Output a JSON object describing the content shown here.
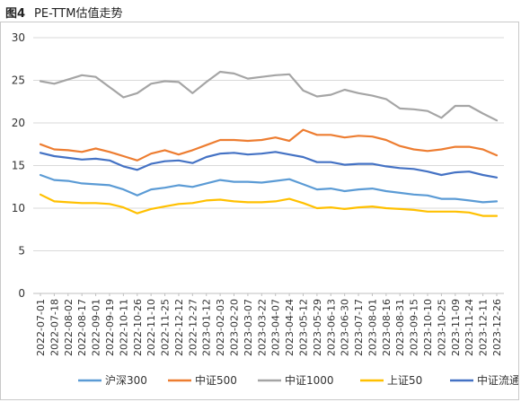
{
  "figure": {
    "number": "图4",
    "title": "PE-TTM估值走势"
  },
  "chart_data": {
    "type": "line",
    "title": "PE-TTM估值走势",
    "xlabel": "",
    "ylabel": "",
    "ylim": [
      0,
      30
    ],
    "yticks": [
      0,
      5,
      10,
      15,
      20,
      25,
      30
    ],
    "grid": "horizontal",
    "legend_position": "bottom",
    "x": [
      "2022-07-01",
      "2022-07-18",
      "2022-08-02",
      "2022-08-17",
      "2022-09-01",
      "2022-09-19",
      "2022-10-11",
      "2022-10-26",
      "2022-11-10",
      "2022-11-25",
      "2022-12-12",
      "2022-12-27",
      "2023-01-12",
      "2023-02-03",
      "2023-02-20",
      "2023-03-07",
      "2023-03-22",
      "2023-04-07",
      "2023-04-24",
      "2023-05-12",
      "2023-05-29",
      "2023-06-13",
      "2023-06-30",
      "2023-07-17",
      "2023-08-01",
      "2023-08-16",
      "2023-08-31",
      "2023-09-15",
      "2023-10-10",
      "2023-10-25",
      "2023-11-09",
      "2023-11-24",
      "2023-12-11",
      "2023-12-26"
    ],
    "series": [
      {
        "name": "沪深300",
        "color": "#5b9bd5",
        "values": [
          13.9,
          13.3,
          13.2,
          12.9,
          12.8,
          12.7,
          12.2,
          11.5,
          12.2,
          12.4,
          12.7,
          12.5,
          12.9,
          13.3,
          13.1,
          13.1,
          13.0,
          13.2,
          13.4,
          12.8,
          12.2,
          12.3,
          12.0,
          12.2,
          12.3,
          12.0,
          11.8,
          11.6,
          11.5,
          11.1,
          11.1,
          10.9,
          10.7,
          10.8
        ]
      },
      {
        "name": "中证500",
        "color": "#ed7d31",
        "values": [
          17.5,
          16.9,
          16.8,
          16.6,
          17.0,
          16.6,
          16.1,
          15.6,
          16.4,
          16.8,
          16.3,
          16.8,
          17.4,
          18.0,
          18.0,
          17.9,
          18.0,
          18.3,
          17.9,
          19.2,
          18.6,
          18.6,
          18.3,
          18.5,
          18.4,
          18.0,
          17.3,
          16.9,
          16.7,
          16.9,
          17.2,
          17.2,
          16.9,
          16.2
        ]
      },
      {
        "name": "中证1000",
        "color": "#a5a5a5",
        "values": [
          24.9,
          24.6,
          25.1,
          25.6,
          25.4,
          24.2,
          23.0,
          23.5,
          24.6,
          24.9,
          24.8,
          23.5,
          24.8,
          26.0,
          25.8,
          25.2,
          25.4,
          25.6,
          25.7,
          23.8,
          23.1,
          23.3,
          23.9,
          23.5,
          23.2,
          22.8,
          21.7,
          21.6,
          21.4,
          20.6,
          22.0,
          22.0,
          21.1,
          20.3
        ]
      },
      {
        "name": "上证50",
        "color": "#ffc000",
        "values": [
          11.6,
          10.8,
          10.7,
          10.6,
          10.6,
          10.5,
          10.1,
          9.4,
          9.9,
          10.2,
          10.5,
          10.6,
          10.9,
          11.0,
          10.8,
          10.7,
          10.7,
          10.8,
          11.1,
          10.6,
          10.0,
          10.1,
          9.9,
          10.1,
          10.2,
          10.0,
          9.9,
          9.8,
          9.6,
          9.6,
          9.6,
          9.5,
          9.1,
          9.1
        ]
      },
      {
        "name": "中证流通",
        "color": "#4472c4",
        "values": [
          16.5,
          16.1,
          15.9,
          15.7,
          15.8,
          15.6,
          14.9,
          14.5,
          15.2,
          15.5,
          15.6,
          15.3,
          16.0,
          16.4,
          16.5,
          16.3,
          16.4,
          16.6,
          16.3,
          16.0,
          15.4,
          15.4,
          15.1,
          15.2,
          15.2,
          14.9,
          14.7,
          14.6,
          14.3,
          13.9,
          14.2,
          14.3,
          13.9,
          13.6
        ]
      }
    ]
  }
}
